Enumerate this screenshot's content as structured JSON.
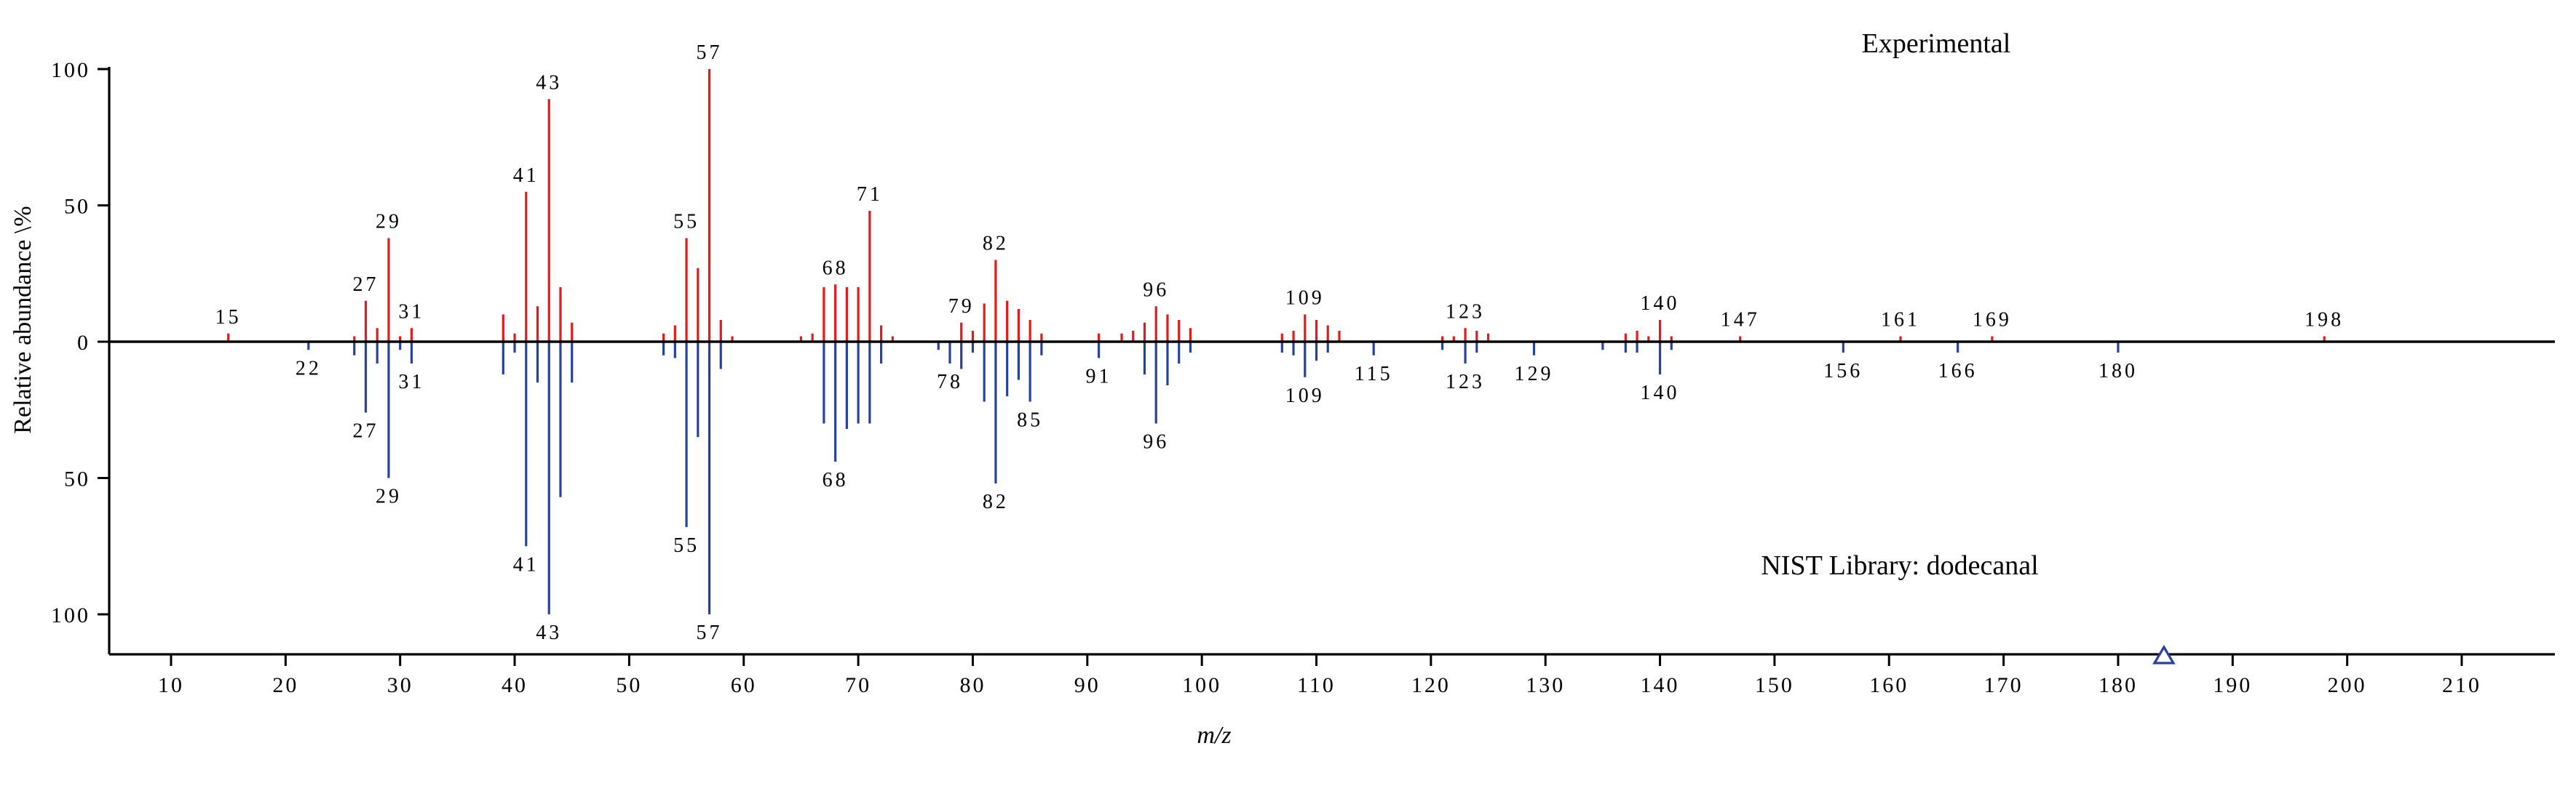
{
  "figure": {
    "x_axis_title": "m/z",
    "y_axis_title": "Relative abundance \\%"
  },
  "chart_data": {
    "type": "bar",
    "subtype": "head-to-tail mass spectrum comparison",
    "title": "",
    "xlabel": "m/z",
    "ylabel": "Relative abundance \\%",
    "x_axis": {
      "min": 5,
      "max": 215,
      "ticks": [
        10,
        20,
        30,
        40,
        50,
        60,
        70,
        80,
        90,
        100,
        110,
        120,
        130,
        140,
        150,
        160,
        170,
        180,
        190,
        200,
        210
      ]
    },
    "y_axis": {
      "ticks": [
        100,
        50,
        0,
        -50,
        -100
      ],
      "tick_labels": [
        "100",
        "50",
        "0",
        "50",
        "100"
      ],
      "unit": "%"
    },
    "annotations": {
      "experimental": "Experimental",
      "library": "NIST Library: dodecanal"
    },
    "series": [
      {
        "name": "Experimental",
        "direction": "up",
        "color": "#e31a1c",
        "peaks": [
          [
            15,
            3
          ],
          [
            26,
            2
          ],
          [
            27,
            15
          ],
          [
            28,
            5
          ],
          [
            29,
            38
          ],
          [
            30,
            2
          ],
          [
            31,
            5
          ],
          [
            39,
            10
          ],
          [
            40,
            3
          ],
          [
            41,
            55
          ],
          [
            42,
            13
          ],
          [
            43,
            89
          ],
          [
            44,
            20
          ],
          [
            45,
            7
          ],
          [
            53,
            3
          ],
          [
            54,
            6
          ],
          [
            55,
            38
          ],
          [
            56,
            27
          ],
          [
            57,
            100
          ],
          [
            58,
            8
          ],
          [
            59,
            2
          ],
          [
            65,
            2
          ],
          [
            66,
            3
          ],
          [
            67,
            20
          ],
          [
            68,
            21
          ],
          [
            69,
            20
          ],
          [
            70,
            20
          ],
          [
            71,
            48
          ],
          [
            72,
            6
          ],
          [
            73,
            2
          ],
          [
            79,
            7
          ],
          [
            80,
            4
          ],
          [
            81,
            14
          ],
          [
            82,
            30
          ],
          [
            83,
            15
          ],
          [
            84,
            12
          ],
          [
            85,
            8
          ],
          [
            86,
            3
          ],
          [
            91,
            3
          ],
          [
            93,
            3
          ],
          [
            94,
            4
          ],
          [
            95,
            7
          ],
          [
            96,
            13
          ],
          [
            97,
            10
          ],
          [
            98,
            8
          ],
          [
            99,
            5
          ],
          [
            107,
            3
          ],
          [
            108,
            4
          ],
          [
            109,
            10
          ],
          [
            110,
            8
          ],
          [
            111,
            6
          ],
          [
            112,
            4
          ],
          [
            121,
            2
          ],
          [
            122,
            2
          ],
          [
            123,
            5
          ],
          [
            124,
            4
          ],
          [
            125,
            3
          ],
          [
            137,
            3
          ],
          [
            138,
            4
          ],
          [
            139,
            2
          ],
          [
            140,
            8
          ],
          [
            141,
            2
          ],
          [
            147,
            2
          ],
          [
            161,
            2
          ],
          [
            169,
            2
          ],
          [
            198,
            2
          ]
        ],
        "labeled_peaks": [
          15,
          27,
          29,
          31,
          41,
          43,
          55,
          57,
          68,
          71,
          79,
          82,
          96,
          109,
          123,
          140,
          147,
          161,
          169,
          198
        ]
      },
      {
        "name": "NIST Library: dodecanal",
        "direction": "down",
        "color": "#27429e",
        "peaks": [
          [
            22,
            3
          ],
          [
            26,
            5
          ],
          [
            27,
            26
          ],
          [
            28,
            8
          ],
          [
            29,
            50
          ],
          [
            30,
            3
          ],
          [
            31,
            8
          ],
          [
            39,
            12
          ],
          [
            40,
            4
          ],
          [
            41,
            75
          ],
          [
            42,
            15
          ],
          [
            43,
            100
          ],
          [
            44,
            57
          ],
          [
            45,
            15
          ],
          [
            53,
            5
          ],
          [
            54,
            6
          ],
          [
            55,
            68
          ],
          [
            56,
            35
          ],
          [
            57,
            100
          ],
          [
            58,
            10
          ],
          [
            67,
            30
          ],
          [
            68,
            44
          ],
          [
            69,
            32
          ],
          [
            70,
            30
          ],
          [
            71,
            30
          ],
          [
            72,
            8
          ],
          [
            77,
            3
          ],
          [
            78,
            8
          ],
          [
            79,
            10
          ],
          [
            80,
            4
          ],
          [
            81,
            22
          ],
          [
            82,
            52
          ],
          [
            83,
            20
          ],
          [
            84,
            14
          ],
          [
            85,
            22
          ],
          [
            86,
            5
          ],
          [
            91,
            6
          ],
          [
            95,
            12
          ],
          [
            96,
            30
          ],
          [
            97,
            16
          ],
          [
            98,
            8
          ],
          [
            99,
            4
          ],
          [
            107,
            4
          ],
          [
            108,
            5
          ],
          [
            109,
            13
          ],
          [
            110,
            7
          ],
          [
            111,
            4
          ],
          [
            115,
            5
          ],
          [
            121,
            3
          ],
          [
            123,
            8
          ],
          [
            124,
            4
          ],
          [
            129,
            5
          ],
          [
            135,
            3
          ],
          [
            137,
            4
          ],
          [
            138,
            4
          ],
          [
            140,
            12
          ],
          [
            141,
            3
          ],
          [
            156,
            4
          ],
          [
            166,
            4
          ],
          [
            180,
            4
          ]
        ],
        "labeled_peaks": [
          22,
          27,
          29,
          31,
          41,
          43,
          55,
          57,
          68,
          78,
          82,
          85,
          91,
          96,
          109,
          115,
          123,
          129,
          140,
          156,
          166,
          180
        ]
      }
    ],
    "molecular_ion_marker": {
      "mz": 184,
      "series": "NIST Library: dodecanal",
      "shape": "open-triangle"
    }
  }
}
